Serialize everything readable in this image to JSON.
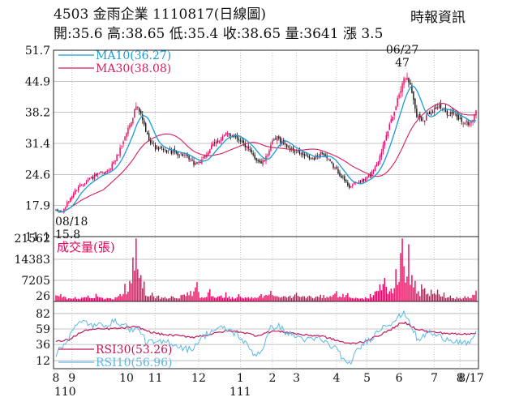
{
  "header": {
    "title": "4503  金雨企業 1110817(日線圖)",
    "quote": "開:35.6 高:38.65 低:35.4 收:38.65 量:3641 漲 3.5",
    "source": "時報資訊"
  },
  "colors": {
    "up": "#e8005a",
    "down": "#111111",
    "ma10": "#1a9bd7",
    "ma30": "#d81b60",
    "volume": "#e8005a",
    "rsi10": "#5bb8e6",
    "rsi30": "#c2185b",
    "grid": "#b0b0b0",
    "frame": "#222222"
  },
  "chart_data": [
    {
      "type": "candlestick",
      "ylim": [
        11.1,
        51.7
      ],
      "y_ticks": [
        "51.7",
        "44.9",
        "38.2",
        "31.4",
        "24.6",
        "17.9",
        "11.1"
      ],
      "grid": true,
      "legend_position": "top-left",
      "series": [
        {
          "name": "MA10(36.27)",
          "key": "ma10"
        },
        {
          "name": "MA30(38.08)",
          "key": "ma30"
        }
      ],
      "annotations": [
        {
          "date_label": "08/18",
          "value_label": "15.8",
          "x_index": 3,
          "value": 15.8
        },
        {
          "date_label": "06/27",
          "value_label": "47",
          "x_index": 216,
          "value": 47
        }
      ],
      "close_path": [
        [
          0,
          16.6
        ],
        [
          4,
          16.4
        ],
        [
          9,
          19.5
        ],
        [
          14,
          22.0
        ],
        [
          20,
          23.5
        ],
        [
          26,
          24.5
        ],
        [
          32,
          25.2
        ],
        [
          38,
          28.5
        ],
        [
          43,
          32.8
        ],
        [
          47,
          36.5
        ],
        [
          50,
          39.5
        ],
        [
          53,
          37.5
        ],
        [
          57,
          33.0
        ],
        [
          62,
          30.5
        ],
        [
          68,
          29.8
        ],
        [
          74,
          29.5
        ],
        [
          80,
          28.8
        ],
        [
          86,
          27.0
        ],
        [
          91,
          27.5
        ],
        [
          96,
          30.2
        ],
        [
          101,
          32.0
        ],
        [
          106,
          33.3
        ],
        [
          110,
          33.4
        ],
        [
          115,
          32.2
        ],
        [
          120,
          30.0
        ],
        [
          124,
          28.3
        ],
        [
          128,
          27.1
        ],
        [
          131,
          28.2
        ],
        [
          134,
          31.2
        ],
        [
          138,
          32.5
        ],
        [
          142,
          31.5
        ],
        [
          146,
          30.2
        ],
        [
          151,
          29.5
        ],
        [
          156,
          28.4
        ],
        [
          161,
          28.0
        ],
        [
          166,
          29.5
        ],
        [
          171,
          27.2
        ],
        [
          176,
          25.2
        ],
        [
          180,
          23.3
        ],
        [
          183,
          22.0
        ],
        [
          187,
          22.8
        ],
        [
          192,
          23.3
        ],
        [
          197,
          25.0
        ],
        [
          202,
          28.5
        ],
        [
          206,
          33.8
        ],
        [
          210,
          36.8
        ],
        [
          213,
          41.0
        ],
        [
          216,
          44.8
        ],
        [
          219,
          46.5
        ],
        [
          222,
          42.5
        ],
        [
          225,
          37.5
        ],
        [
          229,
          36.5
        ],
        [
          233,
          38.2
        ],
        [
          238,
          39.5
        ],
        [
          243,
          38.3
        ],
        [
          248,
          37.8
        ],
        [
          252,
          36.5
        ],
        [
          256,
          35.8
        ],
        [
          259,
          36.0
        ],
        [
          262,
          38.65
        ]
      ],
      "x_count": 263
    },
    {
      "type": "bar",
      "title": "成交量(張)",
      "ylim": [
        0,
        21562
      ],
      "y_ticks": [
        "21562",
        "14383",
        "7205",
        "26"
      ],
      "peaks": [
        [
          3,
          2500
        ],
        [
          9,
          1000
        ],
        [
          12,
          1500
        ],
        [
          20,
          2000
        ],
        [
          25,
          2600
        ],
        [
          32,
          1200
        ],
        [
          37,
          1400
        ],
        [
          43,
          6000
        ],
        [
          46,
          7000
        ],
        [
          48,
          15000
        ],
        [
          49,
          10500
        ],
        [
          50,
          21500
        ],
        [
          51,
          11000
        ],
        [
          52,
          8000
        ],
        [
          53,
          9000
        ],
        [
          54,
          4500
        ],
        [
          55,
          6800
        ],
        [
          56,
          2000
        ],
        [
          60,
          3000
        ],
        [
          64,
          2000
        ],
        [
          68,
          1500
        ],
        [
          72,
          1800
        ],
        [
          82,
          3100
        ],
        [
          88,
          6600
        ],
        [
          90,
          1200
        ],
        [
          96,
          4200
        ],
        [
          98,
          1800
        ],
        [
          106,
          3100
        ],
        [
          110,
          1500
        ],
        [
          114,
          2500
        ],
        [
          122,
          1500
        ],
        [
          128,
          2500
        ],
        [
          134,
          3600
        ],
        [
          138,
          1800
        ],
        [
          150,
          3000
        ],
        [
          158,
          2000
        ],
        [
          165,
          2300
        ],
        [
          175,
          3500
        ],
        [
          182,
          2800
        ],
        [
          190,
          1000
        ],
        [
          196,
          2500
        ],
        [
          202,
          5800
        ],
        [
          205,
          8000
        ],
        [
          208,
          3500
        ],
        [
          212,
          11000
        ],
        [
          215,
          16500
        ],
        [
          216,
          21500
        ],
        [
          217,
          12000
        ],
        [
          219,
          8500
        ],
        [
          220,
          19500
        ],
        [
          222,
          9000
        ],
        [
          224,
          7000
        ],
        [
          226,
          3500
        ],
        [
          228,
          5800
        ],
        [
          230,
          4500
        ],
        [
          234,
          4000
        ],
        [
          238,
          4000
        ],
        [
          242,
          3000
        ],
        [
          246,
          2000
        ],
        [
          250,
          1500
        ],
        [
          255,
          1800
        ],
        [
          262,
          3641
        ]
      ]
    },
    {
      "type": "line",
      "ylim": [
        0,
        100
      ],
      "y_ticks": [
        "82",
        "59",
        "36",
        "12"
      ],
      "y_tick_values": [
        82,
        59,
        36,
        12
      ],
      "legend_position": "bottom-left",
      "series": [
        {
          "name": "RSI30(53.26)",
          "key": "rsi30",
          "points": [
            [
              0,
              40
            ],
            [
              8,
              43
            ],
            [
              14,
              52
            ],
            [
              20,
              58
            ],
            [
              30,
              59
            ],
            [
              40,
              60
            ],
            [
              47,
              62
            ],
            [
              52,
              61
            ],
            [
              58,
              55
            ],
            [
              66,
              51
            ],
            [
              76,
              49
            ],
            [
              86,
              47
            ],
            [
              96,
              51
            ],
            [
              106,
              56
            ],
            [
              115,
              55
            ],
            [
              125,
              49
            ],
            [
              135,
              56
            ],
            [
              145,
              54
            ],
            [
              155,
              50
            ],
            [
              165,
              49
            ],
            [
              175,
              42
            ],
            [
              183,
              37
            ],
            [
              192,
              40
            ],
            [
              200,
              48
            ],
            [
              208,
              57
            ],
            [
              214,
              66
            ],
            [
              218,
              68
            ],
            [
              224,
              60
            ],
            [
              232,
              55
            ],
            [
              242,
              53
            ],
            [
              252,
              51
            ],
            [
              262,
              53.26
            ]
          ]
        },
        {
          "name": "RSI10(56.96)",
          "key": "rsi10",
          "points": [
            [
              0,
              22
            ],
            [
              6,
              38
            ],
            [
              10,
              58
            ],
            [
              14,
              66
            ],
            [
              18,
              70
            ],
            [
              24,
              63
            ],
            [
              30,
              66
            ],
            [
              38,
              70
            ],
            [
              44,
              63
            ],
            [
              48,
              56
            ],
            [
              52,
              60
            ],
            [
              56,
              40
            ],
            [
              62,
              38
            ],
            [
              70,
              40
            ],
            [
              78,
              32
            ],
            [
              84,
              28
            ],
            [
              90,
              44
            ],
            [
              96,
              55
            ],
            [
              102,
              60
            ],
            [
              108,
              58
            ],
            [
              114,
              49
            ],
            [
              120,
              32
            ],
            [
              124,
              21
            ],
            [
              128,
              26
            ],
            [
              134,
              60
            ],
            [
              138,
              65
            ],
            [
              144,
              53
            ],
            [
              150,
              48
            ],
            [
              158,
              42
            ],
            [
              164,
              45
            ],
            [
              170,
              36
            ],
            [
              176,
              28
            ],
            [
              180,
              10
            ],
            [
              182,
              3
            ],
            [
              186,
              20
            ],
            [
              192,
              38
            ],
            [
              198,
              48
            ],
            [
              204,
              64
            ],
            [
              210,
              70
            ],
            [
              214,
              77
            ],
            [
              218,
              82
            ],
            [
              222,
              63
            ],
            [
              226,
              40
            ],
            [
              232,
              55
            ],
            [
              238,
              48
            ],
            [
              246,
              44
            ],
            [
              254,
              38
            ],
            [
              258,
              35
            ],
            [
              262,
              56.96
            ]
          ]
        }
      ]
    }
  ],
  "x_axis": {
    "month_labels": [
      {
        "label": "8",
        "x_index": 0
      },
      {
        "label": "9",
        "x_index": 10
      },
      {
        "label": "10",
        "x_index": 44
      },
      {
        "label": "11",
        "x_index": 62
      },
      {
        "label": "12",
        "x_index": 89
      },
      {
        "label": "1",
        "x_index": 115
      },
      {
        "label": "2",
        "x_index": 135
      },
      {
        "label": "3",
        "x_index": 150
      },
      {
        "label": "4",
        "x_index": 175
      },
      {
        "label": "5",
        "x_index": 194
      },
      {
        "label": "6",
        "x_index": 214
      },
      {
        "label": "7",
        "x_index": 236
      },
      {
        "label": "8",
        "x_index": 252
      },
      {
        "label": "8/17",
        "x_index": 262
      }
    ],
    "year_labels": [
      {
        "label": "110",
        "x_index": 0
      },
      {
        "label": "111",
        "x_index": 115
      }
    ]
  }
}
